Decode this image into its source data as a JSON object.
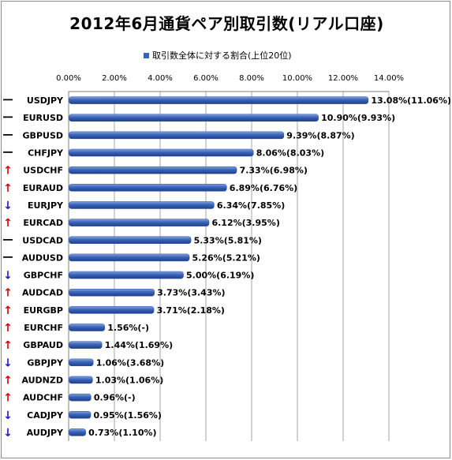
{
  "chart_data": {
    "type": "bar",
    "orientation": "horizontal",
    "title": "2012年6月通貨ペア別取引数(リアル口座)",
    "legend": {
      "label": "取引数全体に対する割合(上位20位)",
      "position": "top"
    },
    "xlim": [
      0,
      14
    ],
    "x_ticks": [
      "0.00%",
      "2.00%",
      "4.00%",
      "6.00%",
      "8.00%",
      "10.00%",
      "12.00%",
      "14.00%"
    ],
    "grid": true,
    "bar_color": "#3a63b8",
    "categories": [
      "USDJPY",
      "EURUSD",
      "GBPUSD",
      "CHFJPY",
      "USDCHF",
      "EURAUD",
      "EURJPY",
      "EURCAD",
      "USDCAD",
      "AUDUSD",
      "GBPCHF",
      "AUDCAD",
      "EURGBP",
      "EURCHF",
      "GBPAUD",
      "GBPJPY",
      "AUDNZD",
      "AUDCHF",
      "CADJPY",
      "AUDJPY"
    ],
    "values": [
      13.08,
      10.9,
      9.39,
      8.06,
      7.33,
      6.89,
      6.34,
      6.12,
      5.33,
      5.26,
      5.0,
      3.73,
      3.71,
      1.56,
      1.44,
      1.06,
      1.03,
      0.96,
      0.95,
      0.73
    ],
    "data_labels": [
      "13.08%(11.06%)",
      "10.90%(9.93%)",
      "9.39%(8.87%)",
      "8.06%(8.03%)",
      "7.33%(6.98%)",
      "6.89%(6.76%)",
      "6.34%(7.85%)",
      "6.12%(3.95%)",
      "5.33%(5.81%)",
      "5.26%(5.21%)",
      "5.00%(6.19%)",
      "3.73%(3.43%)",
      "3.71%(2.18%)",
      "1.56%(-)",
      "1.44%(1.69%)",
      "1.06%(3.68%)",
      "1.03%(1.06%)",
      "0.96%(-)",
      "0.95%(1.56%)",
      "0.73%(1.10%)"
    ],
    "rank_change": [
      "same",
      "same",
      "same",
      "same",
      "up",
      "up",
      "down",
      "up",
      "same",
      "same",
      "down",
      "up",
      "up",
      "up",
      "up",
      "down",
      "up",
      "up",
      "down",
      "down"
    ],
    "rank_marks": {
      "up": "↑",
      "down": "↓",
      "same": "ー"
    },
    "rank_colors": {
      "up": "#e00000",
      "down": "#1a1ad0",
      "same": "#000000"
    }
  }
}
